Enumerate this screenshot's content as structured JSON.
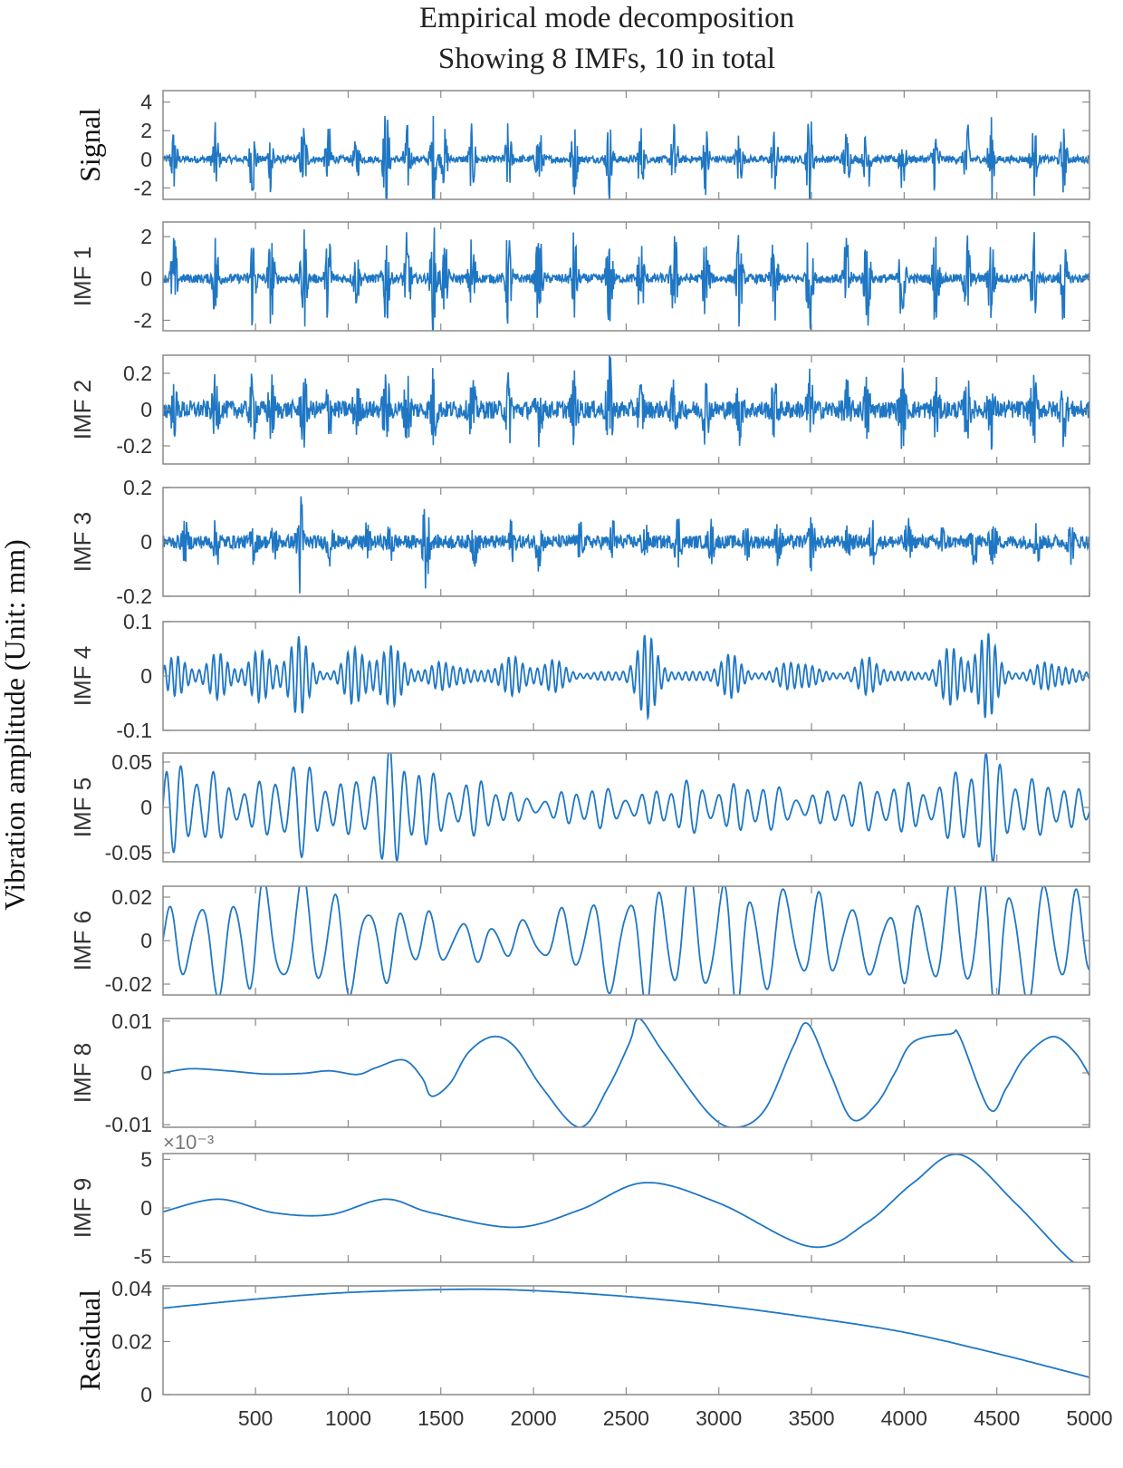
{
  "chart_data": {
    "type": "line",
    "title": "Empirical mode decomposition",
    "subtitle": "Showing 8 IMFs,  10 in total",
    "shared_ylabel": "Vibration amplitude (Unit: mm)",
    "x_range": [
      1,
      5000
    ],
    "x_ticks": [
      500,
      1000,
      1500,
      2000,
      2500,
      3000,
      3500,
      4000,
      4500,
      5000
    ],
    "line_color": "#1f77c4",
    "axes_color": "#8a8a8a",
    "panels": [
      {
        "ylabel": "Signal",
        "label_style": "serif",
        "ylim": [
          -2.8,
          4.8
        ],
        "yticks": [
          -2,
          0,
          2,
          4
        ],
        "ytick_labels": [
          "-2",
          "0",
          "2",
          "4"
        ],
        "kind": "bursts",
        "bursts": [
          {
            "x": 60,
            "h": 2.2
          },
          {
            "x": 285,
            "h": 2.4
          },
          {
            "x": 485,
            "h": 2.6
          },
          {
            "x": 585,
            "h": 2.4
          },
          {
            "x": 760,
            "h": 2.8
          },
          {
            "x": 895,
            "h": 2.3
          },
          {
            "x": 1045,
            "h": 1.4
          },
          {
            "x": 1205,
            "h": 3.8
          },
          {
            "x": 1320,
            "h": 2.3
          },
          {
            "x": 1460,
            "h": 3.2
          },
          {
            "x": 1520,
            "h": 2.0
          },
          {
            "x": 1670,
            "h": 2.4
          },
          {
            "x": 1865,
            "h": 2.5
          },
          {
            "x": 2030,
            "h": 2.5
          },
          {
            "x": 2220,
            "h": 2.4
          },
          {
            "x": 2410,
            "h": 2.7
          },
          {
            "x": 2580,
            "h": 2.3
          },
          {
            "x": 2760,
            "h": 2.6
          },
          {
            "x": 2930,
            "h": 2.3
          },
          {
            "x": 3110,
            "h": 2.2
          },
          {
            "x": 3300,
            "h": 2.4
          },
          {
            "x": 3490,
            "h": 3.6
          },
          {
            "x": 3690,
            "h": 2.1
          },
          {
            "x": 3800,
            "h": 2.6
          },
          {
            "x": 3990,
            "h": 2.4
          },
          {
            "x": 4170,
            "h": 2.5
          },
          {
            "x": 4340,
            "h": 2.4
          },
          {
            "x": 4470,
            "h": 2.8
          },
          {
            "x": 4700,
            "h": 2.4
          },
          {
            "x": 4860,
            "h": 2.2
          }
        ],
        "noise": 0.25
      },
      {
        "ylabel": "IMF 1",
        "label_style": "sans",
        "ylim": [
          -2.5,
          2.7
        ],
        "yticks": [
          -2,
          0,
          2
        ],
        "ytick_labels": [
          "-2",
          "0",
          "2"
        ],
        "kind": "bursts",
        "bursts": [
          {
            "x": 60,
            "h": 2.0
          },
          {
            "x": 285,
            "h": 2.3
          },
          {
            "x": 485,
            "h": 2.4
          },
          {
            "x": 585,
            "h": 2.2
          },
          {
            "x": 760,
            "h": 2.5
          },
          {
            "x": 895,
            "h": 2.2
          },
          {
            "x": 1045,
            "h": 1.3
          },
          {
            "x": 1205,
            "h": 2.6
          },
          {
            "x": 1320,
            "h": 2.2
          },
          {
            "x": 1460,
            "h": 2.5
          },
          {
            "x": 1520,
            "h": 1.8
          },
          {
            "x": 1670,
            "h": 2.3
          },
          {
            "x": 1865,
            "h": 2.4
          },
          {
            "x": 2030,
            "h": 2.4
          },
          {
            "x": 2220,
            "h": 2.3
          },
          {
            "x": 2410,
            "h": 2.5
          },
          {
            "x": 2580,
            "h": 2.2
          },
          {
            "x": 2760,
            "h": 2.4
          },
          {
            "x": 2930,
            "h": 2.2
          },
          {
            "x": 3110,
            "h": 2.1
          },
          {
            "x": 3300,
            "h": 2.3
          },
          {
            "x": 3490,
            "h": 2.6
          },
          {
            "x": 3690,
            "h": 2.0
          },
          {
            "x": 3800,
            "h": 2.5
          },
          {
            "x": 3990,
            "h": 2.3
          },
          {
            "x": 4170,
            "h": 2.4
          },
          {
            "x": 4340,
            "h": 2.3
          },
          {
            "x": 4470,
            "h": 2.5
          },
          {
            "x": 4700,
            "h": 2.3
          },
          {
            "x": 4860,
            "h": 2.1
          }
        ],
        "noise": 0.22
      },
      {
        "ylabel": "IMF 2",
        "label_style": "sans",
        "ylim": [
          -0.3,
          0.3
        ],
        "yticks": [
          -0.2,
          0,
          0.2
        ],
        "ytick_labels": [
          "-0.2",
          "0",
          "0.2"
        ],
        "kind": "bursts",
        "bursts": [
          {
            "x": 60,
            "h": 0.12
          },
          {
            "x": 285,
            "h": 0.16
          },
          {
            "x": 485,
            "h": 0.18
          },
          {
            "x": 585,
            "h": 0.17
          },
          {
            "x": 760,
            "h": 0.2
          },
          {
            "x": 895,
            "h": 0.15
          },
          {
            "x": 1045,
            "h": 0.13
          },
          {
            "x": 1205,
            "h": 0.2
          },
          {
            "x": 1320,
            "h": 0.2
          },
          {
            "x": 1460,
            "h": 0.22
          },
          {
            "x": 1670,
            "h": 0.16
          },
          {
            "x": 1865,
            "h": 0.18
          },
          {
            "x": 2030,
            "h": 0.16
          },
          {
            "x": 2220,
            "h": 0.17
          },
          {
            "x": 2410,
            "h": 0.3
          },
          {
            "x": 2580,
            "h": 0.14
          },
          {
            "x": 2760,
            "h": 0.15
          },
          {
            "x": 2930,
            "h": 0.17
          },
          {
            "x": 3110,
            "h": 0.16
          },
          {
            "x": 3300,
            "h": 0.15
          },
          {
            "x": 3490,
            "h": 0.2
          },
          {
            "x": 3690,
            "h": 0.14
          },
          {
            "x": 3800,
            "h": 0.17
          },
          {
            "x": 3990,
            "h": 0.2
          },
          {
            "x": 4170,
            "h": 0.17
          },
          {
            "x": 4340,
            "h": 0.15
          },
          {
            "x": 4470,
            "h": 0.18
          },
          {
            "x": 4700,
            "h": 0.17
          },
          {
            "x": 4860,
            "h": 0.16
          }
        ],
        "noise": 0.05
      },
      {
        "ylabel": "IMF 3",
        "label_style": "sans",
        "ylim": [
          -0.2,
          0.2
        ],
        "yticks": [
          -0.2,
          0,
          0.2
        ],
        "ytick_labels": [
          "-0.2",
          "0",
          "0.2"
        ],
        "kind": "bursts",
        "bursts": [
          {
            "x": 120,
            "h": 0.06
          },
          {
            "x": 290,
            "h": 0.08
          },
          {
            "x": 490,
            "h": 0.07
          },
          {
            "x": 600,
            "h": 0.06
          },
          {
            "x": 740,
            "h": 0.2
          },
          {
            "x": 900,
            "h": 0.07
          },
          {
            "x": 1100,
            "h": 0.06
          },
          {
            "x": 1230,
            "h": 0.07
          },
          {
            "x": 1420,
            "h": 0.19
          },
          {
            "x": 1680,
            "h": 0.08
          },
          {
            "x": 1880,
            "h": 0.07
          },
          {
            "x": 2030,
            "h": 0.09
          },
          {
            "x": 2250,
            "h": 0.06
          },
          {
            "x": 2430,
            "h": 0.07
          },
          {
            "x": 2600,
            "h": 0.06
          },
          {
            "x": 2780,
            "h": 0.1
          },
          {
            "x": 2960,
            "h": 0.07
          },
          {
            "x": 3150,
            "h": 0.06
          },
          {
            "x": 3320,
            "h": 0.07
          },
          {
            "x": 3500,
            "h": 0.09
          },
          {
            "x": 3700,
            "h": 0.05
          },
          {
            "x": 3830,
            "h": 0.08
          },
          {
            "x": 4020,
            "h": 0.07
          },
          {
            "x": 4200,
            "h": 0.06
          },
          {
            "x": 4380,
            "h": 0.08
          },
          {
            "x": 4480,
            "h": 0.08
          },
          {
            "x": 4720,
            "h": 0.08
          },
          {
            "x": 4900,
            "h": 0.07
          }
        ],
        "noise": 0.025
      },
      {
        "ylabel": "IMF 4",
        "label_style": "sans",
        "ylim": [
          -0.1,
          0.1
        ],
        "yticks": [
          -0.1,
          0,
          0.1
        ],
        "ytick_labels": [
          "-0.1",
          "0",
          "0.1"
        ],
        "kind": "osc",
        "period": 38,
        "peaks": [
          {
            "x": 80,
            "a": 0.03
          },
          {
            "x": 300,
            "a": 0.035
          },
          {
            "x": 520,
            "a": 0.04
          },
          {
            "x": 720,
            "a": 0.07
          },
          {
            "x": 1060,
            "a": 0.06
          },
          {
            "x": 1250,
            "a": 0.05
          },
          {
            "x": 1540,
            "a": 0.03
          },
          {
            "x": 1860,
            "a": 0.035
          },
          {
            "x": 2080,
            "a": 0.03
          },
          {
            "x": 2610,
            "a": 0.07
          },
          {
            "x": 3050,
            "a": 0.035
          },
          {
            "x": 3420,
            "a": 0.035
          },
          {
            "x": 3820,
            "a": 0.03
          },
          {
            "x": 4250,
            "a": 0.045
          },
          {
            "x": 4430,
            "a": 0.08
          },
          {
            "x": 4800,
            "a": 0.03
          }
        ],
        "base": 0.008
      },
      {
        "ylabel": "IMF 5",
        "label_style": "sans",
        "ylim": [
          -0.06,
          0.06
        ],
        "yticks": [
          -0.05,
          0,
          0.05
        ],
        "ytick_labels": [
          "-0.05",
          "0",
          "0.05"
        ],
        "kind": "osc",
        "period": 85,
        "peaks": [
          {
            "x": 80,
            "a": 0.04
          },
          {
            "x": 300,
            "a": 0.02
          },
          {
            "x": 720,
            "a": 0.05
          },
          {
            "x": 1190,
            "a": 0.045
          },
          {
            "x": 1350,
            "a": 0.03
          },
          {
            "x": 1720,
            "a": 0.025
          },
          {
            "x": 2300,
            "a": 0.02
          },
          {
            "x": 2800,
            "a": 0.025
          },
          {
            "x": 3200,
            "a": 0.025
          },
          {
            "x": 3700,
            "a": 0.02
          },
          {
            "x": 4000,
            "a": 0.02
          },
          {
            "x": 4420,
            "a": 0.06
          },
          {
            "x": 4800,
            "a": 0.025
          }
        ],
        "base": 0.006
      },
      {
        "ylabel": "IMF 6",
        "label_style": "sans",
        "ylim": [
          -0.025,
          0.025
        ],
        "yticks": [
          -0.02,
          0,
          0.02
        ],
        "ytick_labels": [
          "-0.02",
          "0",
          "0.02"
        ],
        "kind": "osc",
        "period": 175,
        "peaks": [
          {
            "x": 300,
            "a": 0.02
          },
          {
            "x": 830,
            "a": 0.022
          },
          {
            "x": 1300,
            "a": 0.008
          },
          {
            "x": 1800,
            "a": 0.004
          },
          {
            "x": 2500,
            "a": 0.022
          },
          {
            "x": 3050,
            "a": 0.025
          },
          {
            "x": 3600,
            "a": 0.014
          },
          {
            "x": 4350,
            "a": 0.025
          },
          {
            "x": 4800,
            "a": 0.02
          }
        ],
        "base": 0.003
      },
      {
        "ylabel": "IMF 8",
        "label_style": "sans",
        "ylim": [
          -0.0105,
          0.0105
        ],
        "yticks": [
          -0.01,
          0,
          0.01
        ],
        "ytick_labels": [
          "-0.01",
          "0",
          "0.01"
        ],
        "kind": "pts",
        "points": [
          [
            1,
            0.0
          ],
          [
            150,
            0.0008
          ],
          [
            350,
            0.0004
          ],
          [
            550,
            -0.0002
          ],
          [
            750,
            -0.0001
          ],
          [
            900,
            0.0004
          ],
          [
            1050,
            -0.0003
          ],
          [
            1150,
            0.001
          ],
          [
            1300,
            0.0025
          ],
          [
            1400,
            -0.001
          ],
          [
            1450,
            -0.0045
          ],
          [
            1550,
            -0.002
          ],
          [
            1650,
            0.004
          ],
          [
            1780,
            0.007
          ],
          [
            1900,
            0.005
          ],
          [
            2050,
            -0.003
          ],
          [
            2250,
            -0.0105
          ],
          [
            2400,
            -0.003
          ],
          [
            2520,
            0.006
          ],
          [
            2570,
            0.0105
          ],
          [
            2700,
            0.004
          ],
          [
            2950,
            -0.008
          ],
          [
            3100,
            -0.0105
          ],
          [
            3250,
            -0.007
          ],
          [
            3400,
            0.005
          ],
          [
            3480,
            0.0095
          ],
          [
            3600,
            0.0
          ],
          [
            3720,
            -0.009
          ],
          [
            3850,
            -0.006
          ],
          [
            3950,
            0.0
          ],
          [
            4050,
            0.006
          ],
          [
            4250,
            0.0075
          ],
          [
            4300,
            0.007
          ],
          [
            4460,
            -0.007
          ],
          [
            4550,
            -0.003
          ],
          [
            4650,
            0.003
          ],
          [
            4800,
            0.007
          ],
          [
            4920,
            0.004
          ],
          [
            5000,
            -0.0005
          ]
        ]
      },
      {
        "ylabel": "IMF 9",
        "label_style": "sans",
        "ylim": [
          -5.6,
          5.6
        ],
        "yticks": [
          -5,
          0,
          5
        ],
        "ytick_labels": [
          "-5",
          "0",
          "5"
        ],
        "exponent": "×10⁻³",
        "kind": "pts",
        "points": [
          [
            1,
            -0.4
          ],
          [
            300,
            0.9
          ],
          [
            600,
            -0.5
          ],
          [
            900,
            -0.7
          ],
          [
            1200,
            0.9
          ],
          [
            1450,
            -0.5
          ],
          [
            1900,
            -2.0
          ],
          [
            2250,
            -0.2
          ],
          [
            2600,
            2.6
          ],
          [
            3000,
            0.5
          ],
          [
            3500,
            -4.0
          ],
          [
            3800,
            -1.5
          ],
          [
            4050,
            2.6
          ],
          [
            4300,
            5.5
          ],
          [
            4600,
            0.5
          ],
          [
            4900,
            -5.4
          ],
          [
            5000,
            -5.6
          ]
        ]
      },
      {
        "ylabel": "Residual",
        "label_style": "serif",
        "ylim": [
          0,
          0.041
        ],
        "yticks": [
          0,
          0.02,
          0.04
        ],
        "ytick_labels": [
          "0",
          "0.02",
          "0.04"
        ],
        "kind": "pts",
        "points": [
          [
            1,
            0.0326
          ],
          [
            500,
            0.036
          ],
          [
            1000,
            0.0385
          ],
          [
            1600,
            0.0397
          ],
          [
            2000,
            0.0392
          ],
          [
            2500,
            0.037
          ],
          [
            3000,
            0.0336
          ],
          [
            3500,
            0.029
          ],
          [
            4000,
            0.0235
          ],
          [
            4500,
            0.0155
          ],
          [
            5000,
            0.0065
          ]
        ]
      }
    ]
  }
}
